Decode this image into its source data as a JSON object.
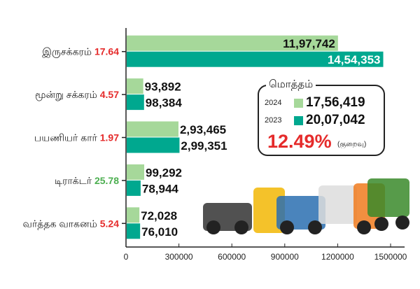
{
  "chart_data": {
    "type": "bar",
    "orientation": "horizontal",
    "categories": [
      "இருசக்கரம்",
      "மூன்று சக்கரம்",
      "பயணியர் கார்",
      "டிராக்டர்",
      "வர்த்தக வாகனம்"
    ],
    "change_pct": [
      "17.64",
      "4.57",
      "1.97",
      "25.78",
      "5.24"
    ],
    "change_colors": [
      "#e52b2b",
      "#e52b2b",
      "#e52b2b",
      "#4caf50",
      "#e52b2b"
    ],
    "series": [
      {
        "name": "2024",
        "color": "#a6d89a",
        "values": [
          1197742,
          93892,
          293465,
          99292,
          72028
        ],
        "labels": [
          "11,97,742",
          "93,892",
          "2,93,465",
          "99,292",
          "72,028"
        ]
      },
      {
        "name": "2023",
        "color": "#00a88f",
        "values": [
          1454353,
          98384,
          299351,
          78944,
          76010
        ],
        "labels": [
          "14,54,353",
          "98,384",
          "2,99,351",
          "78,944",
          "76,010"
        ]
      }
    ],
    "xlim": [
      0,
      1500000
    ],
    "xticks": [
      "0",
      "300000",
      "600000",
      "900000",
      "1200000",
      "1500000"
    ],
    "xlabel": "",
    "ylabel": ""
  },
  "totals": {
    "title": "மொத்தம்",
    "rows": [
      {
        "year": "2024",
        "value": "17,56,419",
        "color": "#a6d89a"
      },
      {
        "year": "2023",
        "value": "20,07,042",
        "color": "#00a88f"
      }
    ],
    "change": "12.49%",
    "change_label": "(குறைவு)"
  }
}
